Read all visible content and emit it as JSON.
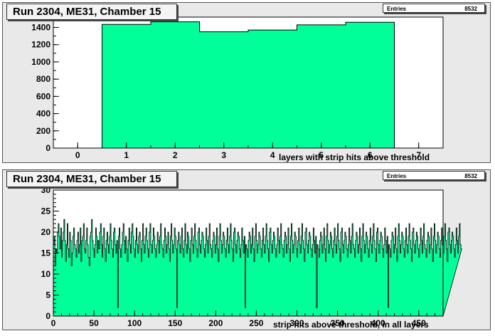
{
  "chart_data": [
    {
      "type": "bar",
      "title": "Run 2304, ME31, Chamber 15",
      "xlabel": "layers with strip hits above threshold",
      "ylabel": "",
      "stats": {
        "label": "Entries",
        "value": "8532"
      },
      "xlim": [
        -0.5,
        7.5
      ],
      "ylim": [
        0,
        1520
      ],
      "xticks": [
        0,
        1,
        2,
        3,
        4,
        5,
        6,
        7
      ],
      "yticks": [
        0,
        200,
        400,
        600,
        800,
        1000,
        1200,
        1400
      ],
      "categories": [
        1,
        2,
        3,
        4,
        5,
        6
      ],
      "values": [
        1435,
        1465,
        1350,
        1370,
        1430,
        1460
      ],
      "fill_color": "#00ff99",
      "grid": false
    },
    {
      "type": "bar",
      "title": "Run 2304, ME31, Chamber 15",
      "xlabel": "strip hits above threshold, in all layers",
      "ylabel": "",
      "stats": {
        "label": "Entries",
        "value": "8532"
      },
      "xlim": [
        0,
        480
      ],
      "ylim": [
        0,
        30
      ],
      "xticks": [
        0,
        50,
        100,
        150,
        200,
        250,
        300,
        350,
        400,
        450
      ],
      "yticks": [
        0,
        5,
        10,
        15,
        20,
        25,
        30
      ],
      "bins": 480,
      "values": [
        17,
        19,
        12,
        16,
        15,
        20,
        22,
        19,
        16,
        21,
        14,
        18,
        20,
        23,
        18,
        13,
        17,
        22,
        16,
        14,
        20,
        18,
        12,
        15,
        19,
        21,
        17,
        16,
        14,
        18,
        20,
        15,
        17,
        21,
        13,
        18,
        19,
        22,
        16,
        15,
        18,
        21,
        17,
        14,
        12,
        19,
        20,
        23,
        18,
        16,
        14,
        17,
        21,
        19,
        15,
        18,
        16,
        20,
        22,
        17,
        14,
        19,
        21,
        16,
        13,
        18,
        20,
        17,
        15,
        19,
        22,
        18,
        16,
        14,
        20,
        21,
        17,
        15,
        18,
        2,
        19,
        21,
        16,
        14,
        17,
        20,
        22,
        18,
        15,
        19,
        16,
        13,
        18,
        21,
        17,
        15,
        20,
        22,
        19,
        16,
        14,
        18,
        21,
        17,
        15,
        19,
        20,
        16,
        13,
        18,
        22,
        17,
        15,
        19,
        21,
        18,
        16,
        14,
        20,
        22,
        17,
        15,
        18,
        21,
        19,
        16,
        14,
        17,
        20,
        18,
        15,
        19,
        22,
        17,
        16,
        14,
        18,
        21,
        19,
        15,
        17,
        20,
        16,
        13,
        19,
        22,
        18,
        15,
        17,
        21,
        19,
        16,
        2,
        18,
        20,
        17,
        15,
        19,
        21,
        16,
        14,
        18,
        22,
        17,
        15,
        20,
        19,
        16,
        13,
        18,
        21,
        17,
        15,
        19,
        22,
        18,
        16,
        14,
        20,
        21,
        17,
        15,
        18,
        20,
        19,
        16,
        14,
        17,
        21,
        18,
        15,
        19,
        22,
        17,
        16,
        14,
        18,
        20,
        19,
        15,
        17,
        21,
        16,
        13,
        19,
        22,
        18,
        15,
        17,
        20,
        19,
        16,
        14,
        18,
        21,
        17,
        15,
        19,
        22,
        18,
        16,
        13,
        20,
        21,
        17,
        15,
        18,
        20,
        19,
        16,
        14,
        17,
        21,
        18,
        15,
        19,
        2,
        17,
        16,
        14,
        18,
        20,
        19,
        15,
        17,
        21,
        16,
        13,
        19,
        22,
        18,
        15,
        17,
        20,
        19,
        16,
        14,
        18,
        21,
        17,
        15,
        19,
        22,
        18,
        16,
        13,
        20,
        21,
        17,
        15,
        18,
        20,
        19,
        16,
        14,
        17,
        21,
        18,
        15,
        19,
        22,
        17,
        16,
        14,
        18,
        20,
        19,
        15,
        17,
        21,
        16,
        13,
        19,
        22,
        18,
        15,
        17,
        20,
        19,
        16,
        14,
        18,
        21,
        17,
        15,
        19,
        22,
        18,
        16,
        13,
        20,
        21,
        17,
        15,
        18,
        20,
        19,
        16,
        14,
        17,
        21,
        18,
        15,
        19,
        2,
        17,
        16,
        14,
        18,
        20,
        19,
        15,
        17,
        21,
        16,
        13,
        19,
        22,
        18,
        15,
        17,
        20,
        19,
        16,
        14,
        18,
        21,
        17,
        15,
        19,
        22,
        18,
        16,
        13,
        20,
        21,
        17,
        15,
        18,
        20,
        19,
        16,
        14,
        17,
        21,
        18,
        15,
        19,
        22,
        17,
        16,
        14,
        18,
        20,
        19,
        15,
        17,
        21,
        16,
        13,
        19,
        22,
        18,
        15,
        17,
        20,
        19,
        16,
        14,
        18,
        21,
        17,
        15,
        19,
        22,
        18,
        16,
        13,
        20,
        21,
        17,
        15,
        18,
        20,
        19,
        16,
        14,
        17,
        21,
        18,
        15,
        19,
        2,
        17,
        16,
        14,
        18,
        20,
        19,
        15,
        17,
        21,
        16,
        13,
        19,
        22,
        18,
        15,
        17,
        20,
        19,
        16,
        14,
        18,
        21,
        17,
        15,
        19,
        22,
        18,
        16,
        13,
        20,
        21,
        17,
        15,
        18,
        20,
        19,
        16,
        14,
        17,
        21,
        18,
        15,
        19,
        22,
        17,
        16,
        14,
        18,
        20,
        19,
        15,
        17,
        21,
        16,
        13,
        19,
        22,
        18,
        15,
        17,
        20,
        19,
        16,
        14,
        18,
        21,
        17,
        15,
        19,
        22,
        18,
        16,
        13,
        20,
        21,
        17,
        15,
        18,
        20,
        19,
        16,
        14,
        17,
        21,
        18,
        15,
        19,
        22,
        17,
        16
      ],
      "fill_color": "#00ff99",
      "grid": false
    }
  ]
}
